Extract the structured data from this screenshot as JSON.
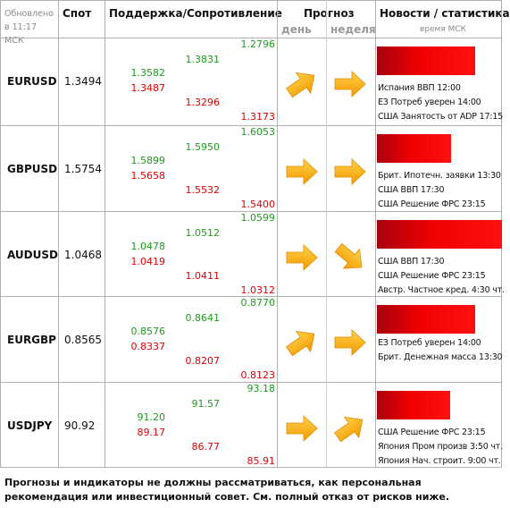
{
  "header": {
    "updated": "Обновлено в 11:17 МСК",
    "spot": "Спот",
    "levels": "Поддержка/Сопротивление",
    "forecast": "Прогноз",
    "day": "день",
    "week": "неделя",
    "news": "Новости / статистика",
    "news_time": "время МСК"
  },
  "rows": [
    {
      "pair": "EURUSD",
      "spot": "1.3494",
      "levels": {
        "a1": "1.3582",
        "a2": "1.3487",
        "b1": "1.3831",
        "b2": "1.3296",
        "c1": "1.2796",
        "c2": "1.3173"
      },
      "news": [
        "Испания ВВП 12:00",
        "ЕЗ Потреб уверен 14:00",
        "США Занятость от ADP 17:15"
      ]
    },
    {
      "pair": "GBPUSD",
      "spot": "1.5754",
      "levels": {
        "a1": "1.5899",
        "a2": "1.5658",
        "b1": "1.5950",
        "b2": "1.5532",
        "c1": "1.6053",
        "c2": "1.5400"
      },
      "news": [
        "Брит. Ипотечн. заявки 13:30",
        "США ВВП 17:30",
        "США Решение ФРС 23:15"
      ]
    },
    {
      "pair": "AUDUSD",
      "spot": "1.0468",
      "levels": {
        "a1": "1.0478",
        "a2": "1.0419",
        "b1": "1.0512",
        "b2": "1.0411",
        "c1": "1.0599",
        "c2": "1.0312"
      },
      "news": [
        "США ВВП 17:30",
        "США Решение ФРС 23:15",
        "Австр. Частное кред. 4:30 чт."
      ]
    },
    {
      "pair": "EURGBP",
      "spot": "0.8565",
      "levels": {
        "a1": "0.8576",
        "a2": "0.8337",
        "b1": "0.8641",
        "b2": "0.8207",
        "c1": "0.8770",
        "c2": "0.8123"
      },
      "news": [
        "ЕЗ Потреб уверен 14:00",
        "Брит. Денежная масса 13:30"
      ]
    },
    {
      "pair": "USDJPY",
      "spot": "90.92",
      "levels": {
        "a1": "91.20",
        "a2": "89.17",
        "b1": "91.57",
        "b2": "86.77",
        "c1": "93.18",
        "c2": "85.91"
      },
      "news": [
        "США Решение ФРС 23:15",
        "Япония Пром произв 3:50 чт.",
        "Япония Нач. строит. 9:00 чт."
      ]
    }
  ],
  "footer": "Прогнозы и индикаторы не должны рассматриваться, как персональная рекомендация или инвестиционный совет. См. полный отказ от рисков ниже."
}
